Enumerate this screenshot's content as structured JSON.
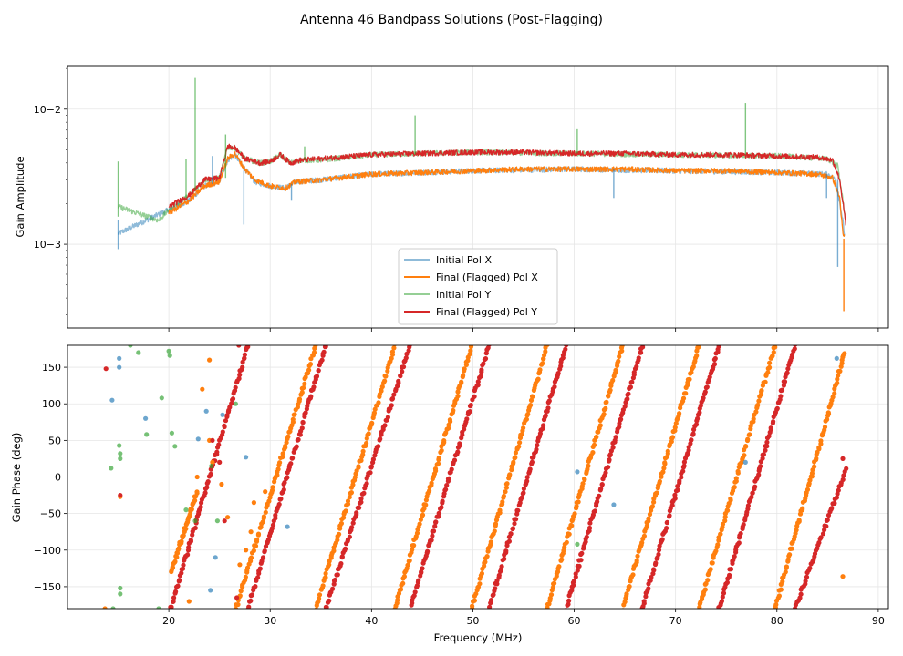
{
  "chart_data": {
    "type": "line",
    "title": "Antenna 46 Bandpass Solutions (Post-Flagging)",
    "colors": {
      "initial_x": "#1f77b4",
      "final_x": "#ff7f0e",
      "initial_y": "#2ca02c",
      "final_y": "#d62728"
    },
    "amplitude": {
      "ylabel": "Gain Amplitude",
      "yscale": "log",
      "xlim": [
        10,
        91
      ],
      "ylim": [
        0.00024,
        0.021
      ],
      "ytick_values": [
        0.001,
        0.01
      ],
      "ytick_labels": [
        "10−3",
        "10−2"
      ],
      "legend": {
        "location": "lower center",
        "entries": [
          "Initial Pol X",
          "Final (Flagged) Pol X",
          "Initial Pol Y",
          "Final (Flagged) Pol Y"
        ]
      },
      "series": [
        {
          "name": "Initial Pol X",
          "points": [
            [
              15.0,
              0.0012
            ],
            [
              18.5,
              0.0016
            ],
            [
              20.0,
              0.0018
            ],
            [
              22.0,
              0.0021
            ],
            [
              23.5,
              0.0027
            ],
            [
              25.0,
              0.0029
            ],
            [
              25.8,
              0.0042
            ],
            [
              26.5,
              0.0046
            ],
            [
              27.5,
              0.0036
            ],
            [
              28.5,
              0.0029
            ],
            [
              30.0,
              0.0027
            ],
            [
              31.5,
              0.0026
            ],
            [
              32.5,
              0.0029
            ],
            [
              35.0,
              0.003
            ],
            [
              40.0,
              0.0033
            ],
            [
              50.0,
              0.0035
            ],
            [
              60.0,
              0.0036
            ],
            [
              70.0,
              0.0035
            ],
            [
              80.0,
              0.0034
            ],
            [
              85.0,
              0.0033
            ],
            [
              85.8,
              0.003
            ],
            [
              86.5,
              0.0015
            ],
            [
              86.7,
              0.0011
            ]
          ]
        },
        {
          "name": "Final (Flagged) Pol X",
          "points": [
            [
              20.0,
              0.0017
            ],
            [
              22.0,
              0.0021
            ],
            [
              23.5,
              0.0027
            ],
            [
              25.0,
              0.0029
            ],
            [
              25.8,
              0.0043
            ],
            [
              26.5,
              0.0047
            ],
            [
              27.5,
              0.0036
            ],
            [
              28.5,
              0.003
            ],
            [
              30.0,
              0.0027
            ],
            [
              31.5,
              0.0026
            ],
            [
              32.5,
              0.0029
            ],
            [
              35.0,
              0.003
            ],
            [
              40.0,
              0.0033
            ],
            [
              45.0,
              0.0034
            ],
            [
              50.0,
              0.0035
            ],
            [
              55.0,
              0.0036
            ],
            [
              60.0,
              0.0036
            ],
            [
              65.0,
              0.0036
            ],
            [
              70.0,
              0.0035
            ],
            [
              75.0,
              0.0035
            ],
            [
              80.0,
              0.0034
            ],
            [
              84.0,
              0.0033
            ],
            [
              85.5,
              0.0031
            ],
            [
              86.2,
              0.0022
            ],
            [
              86.5,
              0.0012
            ],
            [
              86.7,
              0.0011
            ]
          ]
        },
        {
          "name": "Initial Pol Y",
          "points": [
            [
              15.0,
              0.0019
            ],
            [
              19.0,
              0.0015
            ],
            [
              20.0,
              0.0018
            ],
            [
              22.0,
              0.0023
            ],
            [
              23.5,
              0.003
            ],
            [
              25.0,
              0.0031
            ],
            [
              25.8,
              0.0052
            ],
            [
              26.5,
              0.0052
            ],
            [
              27.5,
              0.0043
            ],
            [
              29.0,
              0.004
            ],
            [
              30.0,
              0.0041
            ],
            [
              31.0,
              0.0046
            ],
            [
              32.0,
              0.004
            ],
            [
              33.0,
              0.0042
            ],
            [
              35.0,
              0.0042
            ],
            [
              40.0,
              0.0046
            ],
            [
              50.0,
              0.0048
            ],
            [
              60.0,
              0.0047
            ],
            [
              70.0,
              0.0046
            ],
            [
              80.0,
              0.0045
            ],
            [
              85.0,
              0.0043
            ],
            [
              86.0,
              0.0038
            ],
            [
              86.8,
              0.0015
            ]
          ]
        },
        {
          "name": "Final (Flagged) Pol Y",
          "points": [
            [
              20.0,
              0.0019
            ],
            [
              22.0,
              0.0023
            ],
            [
              23.5,
              0.003
            ],
            [
              25.0,
              0.0031
            ],
            [
              25.8,
              0.0053
            ],
            [
              26.5,
              0.0052
            ],
            [
              27.5,
              0.0043
            ],
            [
              29.0,
              0.004
            ],
            [
              30.0,
              0.0041
            ],
            [
              31.0,
              0.0046
            ],
            [
              32.0,
              0.004
            ],
            [
              33.0,
              0.0042
            ],
            [
              35.0,
              0.0043
            ],
            [
              40.0,
              0.0046
            ],
            [
              45.0,
              0.0047
            ],
            [
              50.0,
              0.0048
            ],
            [
              55.0,
              0.0048
            ],
            [
              60.0,
              0.0047
            ],
            [
              65.0,
              0.0047
            ],
            [
              70.0,
              0.0046
            ],
            [
              75.0,
              0.0046
            ],
            [
              80.0,
              0.0045
            ],
            [
              84.0,
              0.0044
            ],
            [
              85.5,
              0.0042
            ],
            [
              86.2,
              0.003
            ],
            [
              86.8,
              0.0014
            ]
          ]
        }
      ],
      "spikes": [
        {
          "series": "Initial Pol X",
          "x": 15.0,
          "from": 0.0015,
          "to": 0.00092
        },
        {
          "series": "Initial Pol X",
          "x": 24.3,
          "from": 0.0028,
          "to": 0.0045
        },
        {
          "series": "Initial Pol X",
          "x": 27.4,
          "from": 0.0035,
          "to": 0.0014
        },
        {
          "series": "Initial Pol X",
          "x": 32.1,
          "from": 0.0028,
          "to": 0.0021
        },
        {
          "series": "Initial Pol X",
          "x": 63.9,
          "from": 0.0036,
          "to": 0.0022
        },
        {
          "series": "Initial Pol X",
          "x": 84.9,
          "from": 0.0033,
          "to": 0.0022
        },
        {
          "series": "Initial Pol X",
          "x": 86.0,
          "from": 0.003,
          "to": 0.00068
        },
        {
          "series": "Final (Flagged) Pol X",
          "x": 86.6,
          "from": 0.0011,
          "to": 0.00032
        },
        {
          "series": "Initial Pol Y",
          "x": 15.0,
          "from": 0.0016,
          "to": 0.0041
        },
        {
          "series": "Initial Pol Y",
          "x": 21.7,
          "from": 0.0022,
          "to": 0.0043
        },
        {
          "series": "Initial Pol Y",
          "x": 22.6,
          "from": 0.0025,
          "to": 0.017
        },
        {
          "series": "Initial Pol Y",
          "x": 25.6,
          "from": 0.0031,
          "to": 0.0065
        },
        {
          "series": "Initial Pol Y",
          "x": 33.4,
          "from": 0.0042,
          "to": 0.0053
        },
        {
          "series": "Initial Pol Y",
          "x": 44.3,
          "from": 0.0046,
          "to": 0.009
        },
        {
          "series": "Initial Pol Y",
          "x": 60.3,
          "from": 0.0047,
          "to": 0.0071
        },
        {
          "series": "Initial Pol Y",
          "x": 76.9,
          "from": 0.0046,
          "to": 0.0111
        }
      ]
    },
    "phase": {
      "ylabel": "Gain Phase (deg)",
      "xlabel": "Frequency (MHz)",
      "xlim": [
        10,
        91
      ],
      "ylim": [
        -180,
        180
      ],
      "ytick_values": [
        -150,
        -100,
        -50,
        0,
        50,
        100,
        150
      ],
      "ytick_labels": [
        "−150",
        "−100",
        "−50",
        "0",
        "50",
        "100",
        "150"
      ],
      "xtick_values": [
        20,
        30,
        40,
        50,
        60,
        70,
        80,
        90
      ],
      "xtick_labels": [
        "20",
        "30",
        "40",
        "50",
        "60",
        "70",
        "80",
        "90"
      ],
      "wraps": [
        {
          "series": "Final (Flagged) Pol X",
          "from": [
            20.2,
            -130
          ],
          "to": [
            22.8,
            -20
          ]
        },
        {
          "series": "Final (Flagged) Pol X",
          "from": [
            26.6,
            -180
          ],
          "to": [
            34.5,
            180
          ]
        },
        {
          "series": "Final (Flagged) Pol X",
          "from": [
            34.5,
            -180
          ],
          "to": [
            42.3,
            180
          ]
        },
        {
          "series": "Final (Flagged) Pol X",
          "from": [
            42.3,
            -180
          ],
          "to": [
            49.9,
            180
          ]
        },
        {
          "series": "Final (Flagged) Pol X",
          "from": [
            49.9,
            -180
          ],
          "to": [
            57.3,
            180
          ]
        },
        {
          "series": "Final (Flagged) Pol X",
          "from": [
            57.3,
            -180
          ],
          "to": [
            64.8,
            180
          ]
        },
        {
          "series": "Final (Flagged) Pol X",
          "from": [
            64.8,
            -180
          ],
          "to": [
            72.3,
            180
          ]
        },
        {
          "series": "Final (Flagged) Pol X",
          "from": [
            72.3,
            -180
          ],
          "to": [
            79.8,
            180
          ]
        },
        {
          "series": "Final (Flagged) Pol X",
          "from": [
            79.8,
            -180
          ],
          "to": [
            86.7,
            170
          ]
        },
        {
          "series": "Final (Flagged) Pol Y",
          "from": [
            20.2,
            -180
          ],
          "to": [
            27.8,
            180
          ]
        },
        {
          "series": "Final (Flagged) Pol Y",
          "from": [
            27.8,
            -180
          ],
          "to": [
            35.5,
            180
          ]
        },
        {
          "series": "Final (Flagged) Pol Y",
          "from": [
            35.5,
            -180
          ],
          "to": [
            43.8,
            180
          ]
        },
        {
          "series": "Final (Flagged) Pol Y",
          "from": [
            43.8,
            -180
          ],
          "to": [
            51.6,
            180
          ]
        },
        {
          "series": "Final (Flagged) Pol Y",
          "from": [
            51.6,
            -180
          ],
          "to": [
            59.2,
            180
          ]
        },
        {
          "series": "Final (Flagged) Pol Y",
          "from": [
            59.2,
            -180
          ],
          "to": [
            66.7,
            180
          ]
        },
        {
          "series": "Final (Flagged) Pol Y",
          "from": [
            66.7,
            -180
          ],
          "to": [
            74.3,
            180
          ]
        },
        {
          "series": "Final (Flagged) Pol Y",
          "from": [
            74.3,
            -180
          ],
          "to": [
            81.8,
            180
          ]
        },
        {
          "series": "Final (Flagged) Pol Y",
          "from": [
            81.8,
            -180
          ],
          "to": [
            86.8,
            10
          ]
        }
      ],
      "scatter": [
        {
          "series": "Initial Pol X",
          "points": [
            [
              14.4,
              105
            ],
            [
              15.1,
              162
            ],
            [
              15.1,
              150
            ],
            [
              17.7,
              80
            ],
            [
              22.9,
              52
            ],
            [
              23.7,
              90
            ],
            [
              24.1,
              -155
            ],
            [
              24.6,
              -110
            ],
            [
              25.3,
              85
            ],
            [
              27.6,
              27
            ],
            [
              31.7,
              -68
            ],
            [
              60.3,
              7
            ],
            [
              63.9,
              -38
            ],
            [
              76.9,
              20
            ],
            [
              85.9,
              162
            ]
          ]
        },
        {
          "series": "Final (Flagged) Pol X",
          "points": [
            [
              13.7,
              -180
            ],
            [
              15.2,
              -27
            ],
            [
              22.0,
              -170
            ],
            [
              22.8,
              0
            ],
            [
              23.3,
              120
            ],
            [
              24.0,
              160
            ],
            [
              24.0,
              50
            ],
            [
              24.3,
              20
            ],
            [
              25.2,
              -10
            ],
            [
              25.8,
              -55
            ],
            [
              27.0,
              -120
            ],
            [
              27.6,
              -100
            ],
            [
              28.1,
              -75
            ],
            [
              28.4,
              -35
            ],
            [
              29.5,
              -20
            ],
            [
              86.5,
              -136
            ]
          ]
        },
        {
          "series": "Final (Flagged) Pol Y",
          "points": [
            [
              13.8,
              148
            ],
            [
              15.2,
              -25
            ],
            [
              24.3,
              50
            ],
            [
              25.0,
              20
            ],
            [
              25.5,
              -60
            ],
            [
              26.7,
              -165
            ],
            [
              26.9,
              180
            ],
            [
              86.5,
              25
            ]
          ]
        },
        {
          "series": "Initial Pol Y",
          "points": [
            [
              14.3,
              12
            ],
            [
              14.5,
              -180
            ],
            [
              15.1,
              43
            ],
            [
              15.2,
              -152
            ],
            [
              15.2,
              -160
            ],
            [
              15.2,
              32
            ],
            [
              15.2,
              25
            ],
            [
              16.2,
              180
            ],
            [
              17.0,
              170
            ],
            [
              17.8,
              58
            ],
            [
              19.0,
              -180
            ],
            [
              19.3,
              108
            ],
            [
              20.1,
              166
            ],
            [
              20.0,
              172
            ],
            [
              20.3,
              60
            ],
            [
              20.6,
              42
            ],
            [
              21.7,
              -45
            ],
            [
              22.6,
              -60
            ],
            [
              24.2,
              15
            ],
            [
              24.8,
              -60
            ],
            [
              26.6,
              100
            ],
            [
              60.3,
              -92
            ]
          ]
        }
      ]
    }
  }
}
